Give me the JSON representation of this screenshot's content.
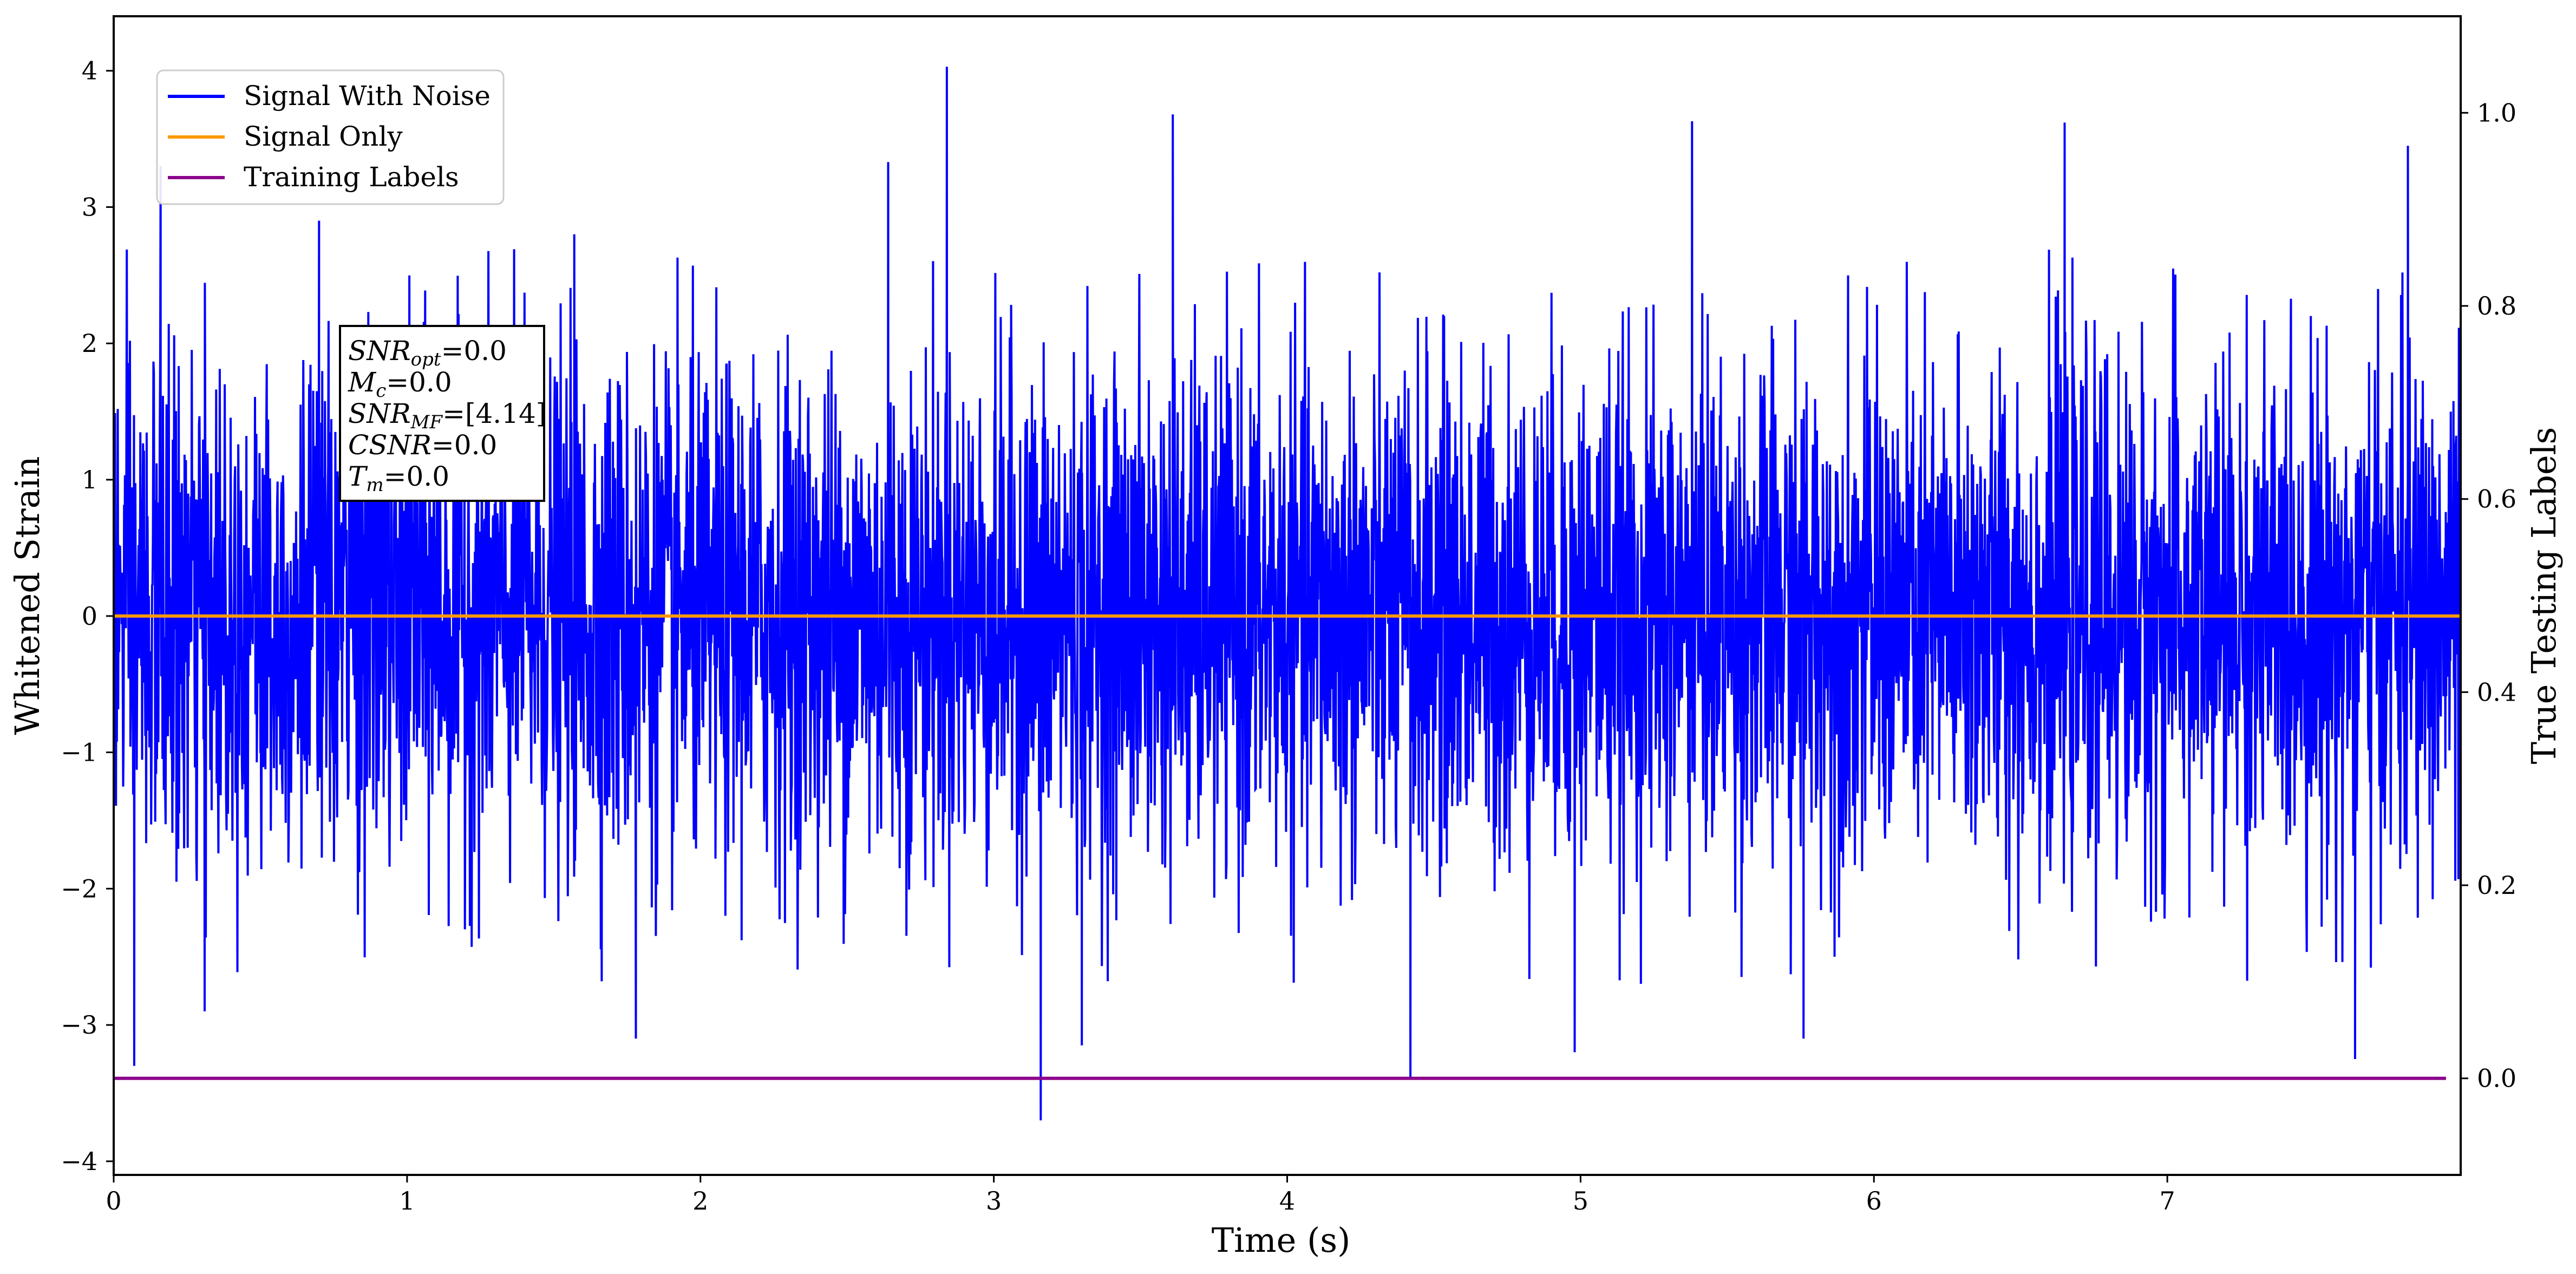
{
  "chart_data": {
    "type": "line",
    "title": "",
    "xlabel": "Time (s)",
    "ylabel": "Whitened Strain",
    "y2label": "True Testing Labels",
    "xlim": [
      0,
      8.0
    ],
    "ylim": [
      -4.1,
      4.4
    ],
    "y2lim": [
      -0.1,
      1.1
    ],
    "x_ticks": [
      "0",
      "1",
      "2",
      "3",
      "4",
      "5",
      "6",
      "7"
    ],
    "y_ticks": [
      "4",
      "3",
      "2",
      "1",
      "0",
      "−1",
      "−2",
      "−3",
      "−4"
    ],
    "y2_ticks": [
      "1.0",
      "0.8",
      "0.6",
      "0.4",
      "0.2",
      "0.0"
    ],
    "grid": false,
    "legend_position": "top-left",
    "series": [
      {
        "name": "Signal With Noise",
        "color": "#0000ff",
        "axis": "left",
        "description_values": "white noise, approx. symmetric about 0, amplitude mostly within ±2.5",
        "peaks": [
          {
            "x": 0.16,
            "y": 3.3
          },
          {
            "x": 0.7,
            "y": 2.9
          },
          {
            "x": 1.57,
            "y": 2.8
          },
          {
            "x": 2.64,
            "y": 3.33
          },
          {
            "x": 2.84,
            "y": 4.03
          },
          {
            "x": 3.61,
            "y": 3.68
          },
          {
            "x": 5.38,
            "y": 3.63
          },
          {
            "x": 6.65,
            "y": 3.62
          },
          {
            "x": 7.82,
            "y": 3.45
          }
        ],
        "troughs": [
          {
            "x": 0.07,
            "y": -3.3
          },
          {
            "x": 0.31,
            "y": -2.9
          },
          {
            "x": 1.78,
            "y": -3.1
          },
          {
            "x": 3.16,
            "y": -3.7
          },
          {
            "x": 3.3,
            "y": -3.15
          },
          {
            "x": 4.42,
            "y": -3.4
          },
          {
            "x": 4.98,
            "y": -3.2
          },
          {
            "x": 5.76,
            "y": -3.1
          },
          {
            "x": 7.64,
            "y": -3.25
          }
        ]
      },
      {
        "name": "Signal Only",
        "color": "#ff9900",
        "axis": "left",
        "x": [
          0,
          8.0
        ],
        "y": [
          0,
          0
        ]
      },
      {
        "name": "Training Labels",
        "color": "#8b008b",
        "axis": "right",
        "x": [
          0,
          7.95
        ],
        "y": [
          0,
          0
        ]
      }
    ],
    "annotation": {
      "lines": [
        {
          "main": "SNR",
          "sub": "opt",
          "rest": "=0.0"
        },
        {
          "main": "M",
          "sub": "c",
          "rest": "=0.0"
        },
        {
          "main": "SNR",
          "sub": "MF",
          "rest": "=[4.14]"
        },
        {
          "main": "CSNR",
          "sub": "",
          "rest": "=0.0"
        },
        {
          "main": "T",
          "sub": "m",
          "rest": "=0.0"
        }
      ]
    }
  }
}
